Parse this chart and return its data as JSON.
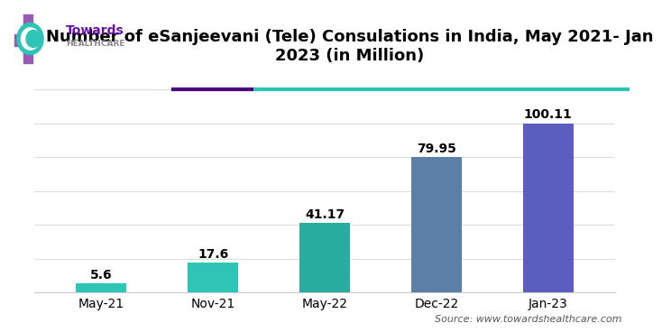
{
  "title": "Number of eSanjeevani (Tele) Consulations in India, May 2021- Jan\n2023 (in Million)",
  "categories": [
    "May-21",
    "Nov-21",
    "May-22",
    "Dec-22",
    "Jan-23"
  ],
  "values": [
    5.6,
    17.6,
    41.17,
    79.95,
    100.11
  ],
  "bar_colors": [
    "#2ec4b6",
    "#2ec4b6",
    "#2aada0",
    "#5b7fa6",
    "#5b5ebf"
  ],
  "value_labels": [
    "5.6",
    "17.6",
    "41.17",
    "79.95",
    "100.11"
  ],
  "source_text": "Source: www.towardshealthcare.com",
  "background_color": "#ffffff",
  "title_fontsize": 13,
  "label_fontsize": 10,
  "tick_fontsize": 10,
  "source_fontsize": 8,
  "ylim": [
    0,
    120
  ],
  "separator_color1": "#4b0082",
  "separator_color2": "#2ec4b6",
  "logo_cross_color": "#9b59b6",
  "logo_leaf_color": "#2ec4b6",
  "logo_text_color": "#6a0dad"
}
